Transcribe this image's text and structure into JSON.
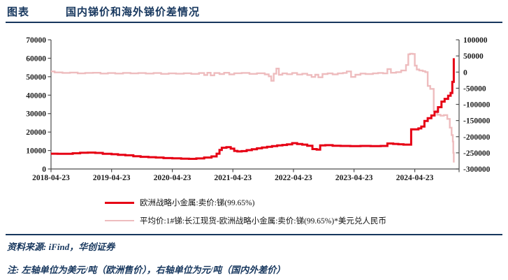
{
  "header": {
    "label": "图表",
    "title": "国内锑价和海外锑价差情况"
  },
  "colors": {
    "navy": "#17375e",
    "red": "#e60014",
    "pink": "#eebcbe",
    "axis": "#4d4d4d",
    "tick_label": "#1a1a1a"
  },
  "legend": {
    "items": [
      {
        "label": "欧洲战略小金属:卖价:锑(99.65%)",
        "color": "#e60014"
      },
      {
        "label": "平均价:1#锑:长江现货-欧洲战略小金属:卖价:锑(99.65%)*美元兑人民币",
        "color": "#eebcbe"
      }
    ]
  },
  "footer": {
    "source": "资料来源: iFind，华创证券",
    "note": "注: 左轴单位为美元/吨（欧洲售价），右轴单位为元/吨（国内外差价）"
  },
  "chart_data": {
    "type": "line",
    "title": "国内锑价和海外锑价差情况",
    "legend_position": "bottom",
    "grid": false,
    "x_domain": [
      "2018-04-23",
      "2025-01-15"
    ],
    "x_tick_labels": [
      "2018-04-23",
      "2019-04-23",
      "2020-04-23",
      "2021-04-23",
      "2022-04-23",
      "2023-04-23",
      "2024-04-23"
    ],
    "left_axis": {
      "label": "美元/吨（欧洲售价）",
      "min": 0,
      "max": 70000,
      "ticks": [
        70000,
        60000,
        50000,
        40000,
        30000,
        20000,
        10000,
        0
      ]
    },
    "right_axis": {
      "label": "元/吨（国内外差价）",
      "min": -300000,
      "max": 100000,
      "ticks": [
        100000,
        50000,
        0,
        -50000,
        -100000,
        -150000,
        -200000,
        -250000,
        -300000
      ]
    },
    "series": [
      {
        "name": "平均价:1#锑:长江现货-欧洲战略小金属:卖价:锑(99.65%)*美元兑人民币",
        "axis": "right",
        "color": "#eebcbe",
        "width": 2.4,
        "points": [
          [
            "2018-04-23",
            2000
          ],
          [
            "2018-05-15",
            -1000
          ],
          [
            "2018-07-01",
            -2500
          ],
          [
            "2018-08-15",
            -1500
          ],
          [
            "2018-10-01",
            -4000
          ],
          [
            "2018-11-15",
            -2500
          ],
          [
            "2019-01-01",
            -2000
          ],
          [
            "2019-02-15",
            -4500
          ],
          [
            "2019-04-01",
            -3000
          ],
          [
            "2019-05-15",
            -4500
          ],
          [
            "2019-07-01",
            -2500
          ],
          [
            "2019-08-15",
            -4000
          ],
          [
            "2019-10-01",
            -3000
          ],
          [
            "2019-11-15",
            -4500
          ],
          [
            "2020-01-01",
            -3000
          ],
          [
            "2020-02-15",
            -5500
          ],
          [
            "2020-04-01",
            -4000
          ],
          [
            "2020-05-15",
            -5000
          ],
          [
            "2020-07-01",
            -3500
          ],
          [
            "2020-08-15",
            -5500
          ],
          [
            "2020-10-01",
            -3000
          ],
          [
            "2020-11-01",
            -9000
          ],
          [
            "2020-11-20",
            -2000
          ],
          [
            "2020-12-10",
            -10000
          ],
          [
            "2021-01-01",
            -3000
          ],
          [
            "2021-02-01",
            -6000
          ],
          [
            "2021-03-01",
            -2000
          ],
          [
            "2021-04-01",
            -7000
          ],
          [
            "2021-05-01",
            -3500
          ],
          [
            "2021-06-15",
            -2500
          ],
          [
            "2021-08-01",
            -5500
          ],
          [
            "2021-09-15",
            -3500
          ],
          [
            "2021-11-01",
            -7000
          ],
          [
            "2021-11-25",
            -13000
          ],
          [
            "2021-12-10",
            -27000
          ],
          [
            "2021-12-25",
            -5000
          ],
          [
            "2022-01-10",
            11000
          ],
          [
            "2022-01-25",
            -8000
          ],
          [
            "2022-02-15",
            -4000
          ],
          [
            "2022-03-15",
            -6500
          ],
          [
            "2022-04-15",
            -3000
          ],
          [
            "2022-05-15",
            -7500
          ],
          [
            "2022-06-15",
            -5000
          ],
          [
            "2022-07-15",
            -9000
          ],
          [
            "2022-08-10",
            -15000
          ],
          [
            "2022-09-01",
            -8000
          ],
          [
            "2022-09-20",
            -16000
          ],
          [
            "2022-10-15",
            -6000
          ],
          [
            "2022-11-15",
            -4000
          ],
          [
            "2022-12-15",
            -7000
          ],
          [
            "2023-01-15",
            -4000
          ],
          [
            "2023-02-15",
            -2500
          ],
          [
            "2023-03-10",
            2000
          ],
          [
            "2023-04-05",
            -15000
          ],
          [
            "2023-05-01",
            -8000
          ],
          [
            "2023-06-01",
            -4500
          ],
          [
            "2023-07-01",
            -6000
          ],
          [
            "2023-08-15",
            -4000
          ],
          [
            "2023-09-15",
            -2500
          ],
          [
            "2023-10-15",
            -4000
          ],
          [
            "2023-11-10",
            9500
          ],
          [
            "2023-12-01",
            -2000
          ],
          [
            "2024-01-01",
            0
          ],
          [
            "2024-02-01",
            5000
          ],
          [
            "2024-03-01",
            22000
          ],
          [
            "2024-03-15",
            55000
          ],
          [
            "2024-03-25",
            57000
          ],
          [
            "2024-04-10",
            56000
          ],
          [
            "2024-04-23",
            20000
          ],
          [
            "2024-05-05",
            8000
          ],
          [
            "2024-05-20",
            5000
          ],
          [
            "2024-06-10",
            3000
          ],
          [
            "2024-06-25",
            0
          ],
          [
            "2024-07-10",
            -43000
          ],
          [
            "2024-07-25",
            -52000
          ],
          [
            "2024-08-15",
            -120000
          ],
          [
            "2024-09-05",
            -132000
          ],
          [
            "2024-09-25",
            -135000
          ],
          [
            "2024-10-15",
            -133000
          ],
          [
            "2024-11-05",
            -145000
          ],
          [
            "2024-11-20",
            -172000
          ],
          [
            "2024-12-01",
            -195000
          ],
          [
            "2024-12-08",
            -215000
          ],
          [
            "2024-12-11",
            -250000
          ],
          [
            "2024-12-14",
            -280000
          ]
        ]
      },
      {
        "name": "欧洲战略小金属:卖价:锑(99.65%)",
        "axis": "left",
        "color": "#e60014",
        "width": 3,
        "points": [
          [
            "2018-04-23",
            8300
          ],
          [
            "2018-06-01",
            8200
          ],
          [
            "2018-07-15",
            8250
          ],
          [
            "2018-09-01",
            8500
          ],
          [
            "2018-10-15",
            8800
          ],
          [
            "2018-12-01",
            8900
          ],
          [
            "2019-01-15",
            8700
          ],
          [
            "2019-03-01",
            8200
          ],
          [
            "2019-04-23",
            8000
          ],
          [
            "2019-06-01",
            7700
          ],
          [
            "2019-07-15",
            7400
          ],
          [
            "2019-09-01",
            6900
          ],
          [
            "2019-10-15",
            6600
          ],
          [
            "2019-12-01",
            6400
          ],
          [
            "2020-01-15",
            6200
          ],
          [
            "2020-03-01",
            5900
          ],
          [
            "2020-04-23",
            5800
          ],
          [
            "2020-06-15",
            5600
          ],
          [
            "2020-08-01",
            5500
          ],
          [
            "2020-09-15",
            5700
          ],
          [
            "2020-11-01",
            6200
          ],
          [
            "2020-12-15",
            6800
          ],
          [
            "2021-01-15",
            8300
          ],
          [
            "2021-02-01",
            10300
          ],
          [
            "2021-02-15",
            11500
          ],
          [
            "2021-03-15",
            11800
          ],
          [
            "2021-04-10",
            11000
          ],
          [
            "2021-05-01",
            9800
          ],
          [
            "2021-05-20",
            9500
          ],
          [
            "2021-06-15",
            9700
          ],
          [
            "2021-07-15",
            10200
          ],
          [
            "2021-08-15",
            10700
          ],
          [
            "2021-09-15",
            11200
          ],
          [
            "2021-10-15",
            11600
          ],
          [
            "2021-11-15",
            12000
          ],
          [
            "2021-12-15",
            12400
          ],
          [
            "2022-01-15",
            12800
          ],
          [
            "2022-02-15",
            13000
          ],
          [
            "2022-03-15",
            13300
          ],
          [
            "2022-04-15",
            14000
          ],
          [
            "2022-05-15",
            13500
          ],
          [
            "2022-06-15",
            13200
          ],
          [
            "2022-07-15",
            12600
          ],
          [
            "2022-08-15",
            10800
          ],
          [
            "2022-09-10",
            10500
          ],
          [
            "2022-10-01",
            12800
          ],
          [
            "2022-11-01",
            12900
          ],
          [
            "2022-12-15",
            12600
          ],
          [
            "2023-02-01",
            12500
          ],
          [
            "2023-04-01",
            12400
          ],
          [
            "2023-06-01",
            12500
          ],
          [
            "2023-08-01",
            12400
          ],
          [
            "2023-10-01",
            12500
          ],
          [
            "2023-11-10",
            13800
          ],
          [
            "2023-12-15",
            13600
          ],
          [
            "2024-01-15",
            13400
          ],
          [
            "2024-02-15",
            13200
          ],
          [
            "2024-03-25",
            13200
          ],
          [
            "2024-04-01",
            21500
          ],
          [
            "2024-05-15",
            22000
          ],
          [
            "2024-06-01",
            23000
          ],
          [
            "2024-06-20",
            26000
          ],
          [
            "2024-07-10",
            27500
          ],
          [
            "2024-08-01",
            29000
          ],
          [
            "2024-08-20",
            31000
          ],
          [
            "2024-09-10",
            33500
          ],
          [
            "2024-10-01",
            36500
          ],
          [
            "2024-10-20",
            38000
          ],
          [
            "2024-11-10",
            39700
          ],
          [
            "2024-11-25",
            41200
          ],
          [
            "2024-12-05",
            47200
          ],
          [
            "2024-12-12",
            47200
          ],
          [
            "2024-12-14",
            60000
          ]
        ]
      }
    ]
  }
}
